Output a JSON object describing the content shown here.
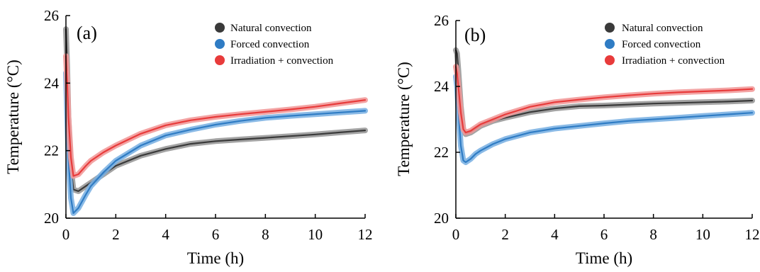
{
  "colors": {
    "natural": "#3a3a3a",
    "natural_band": "#9a9a9a",
    "forced": "#2f7cc4",
    "forced_band": "#7db3e3",
    "irradiation": "#e83b3b",
    "irradiation_band": "#f29a9a",
    "axis": "#000000"
  },
  "chart_data": [
    {
      "type": "line",
      "panel_label": "(a)",
      "xlabel": "Time (h)",
      "ylabel": "Temperature (°C)",
      "xlim": [
        0,
        12
      ],
      "ylim": [
        20,
        26
      ],
      "x_ticks": [
        "0",
        "2",
        "4",
        "6",
        "8",
        "10",
        "12"
      ],
      "y_ticks": [
        "20",
        "22",
        "24",
        "26"
      ],
      "legend_position": "top-right",
      "grid": false,
      "series": [
        {
          "name": "Natural convection",
          "color_key": "natural",
          "x": [
            0.0,
            0.05,
            0.1,
            0.2,
            0.3,
            0.5,
            0.8,
            1.0,
            1.5,
            2.0,
            3.0,
            4.0,
            5.0,
            6.0,
            7.0,
            8.0,
            9.0,
            10.0,
            11.0,
            12.0
          ],
          "y": [
            25.6,
            24.5,
            23.0,
            21.5,
            20.85,
            20.8,
            20.95,
            21.05,
            21.3,
            21.55,
            21.85,
            22.05,
            22.2,
            22.28,
            22.33,
            22.38,
            22.43,
            22.48,
            22.54,
            22.6
          ]
        },
        {
          "name": "Forced convection",
          "color_key": "forced",
          "x": [
            0.0,
            0.05,
            0.1,
            0.2,
            0.3,
            0.5,
            0.8,
            1.0,
            1.5,
            2.0,
            3.0,
            4.0,
            5.0,
            6.0,
            7.0,
            8.0,
            9.0,
            10.0,
            11.0,
            12.0
          ],
          "y": [
            24.3,
            23.0,
            21.8,
            20.6,
            20.15,
            20.3,
            20.7,
            20.95,
            21.35,
            21.7,
            22.15,
            22.45,
            22.62,
            22.77,
            22.88,
            22.97,
            23.03,
            23.08,
            23.13,
            23.18
          ]
        },
        {
          "name": "Irradiation + convection",
          "color_key": "irradiation",
          "x": [
            0.0,
            0.05,
            0.1,
            0.2,
            0.3,
            0.5,
            0.8,
            1.0,
            1.5,
            2.0,
            3.0,
            4.0,
            5.0,
            6.0,
            7.0,
            8.0,
            9.0,
            10.0,
            11.0,
            12.0
          ],
          "y": [
            24.8,
            24.0,
            23.0,
            21.8,
            21.25,
            21.3,
            21.55,
            21.7,
            21.95,
            22.15,
            22.5,
            22.75,
            22.9,
            23.0,
            23.08,
            23.15,
            23.22,
            23.3,
            23.4,
            23.5
          ]
        }
      ]
    },
    {
      "type": "line",
      "panel_label": "(b)",
      "xlabel": "Time (h)",
      "ylabel": "Temperature (°C)",
      "xlim": [
        0,
        12
      ],
      "ylim": [
        20,
        26
      ],
      "x_ticks": [
        "0",
        "2",
        "4",
        "6",
        "8",
        "10",
        "12"
      ],
      "y_ticks": [
        "20",
        "22",
        "24",
        "26"
      ],
      "legend_position": "top-right",
      "grid": false,
      "series": [
        {
          "name": "Natural convection",
          "color_key": "natural",
          "x": [
            0.0,
            0.05,
            0.1,
            0.2,
            0.3,
            0.4,
            0.6,
            0.8,
            1.0,
            1.5,
            2.0,
            3.0,
            4.0,
            5.0,
            6.0,
            7.0,
            8.0,
            9.0,
            10.0,
            11.0,
            12.0
          ],
          "y": [
            25.1,
            25.0,
            24.5,
            23.4,
            22.7,
            22.55,
            22.6,
            22.7,
            22.8,
            22.95,
            23.05,
            23.22,
            23.33,
            23.4,
            23.42,
            23.45,
            23.48,
            23.5,
            23.52,
            23.54,
            23.57
          ]
        },
        {
          "name": "Forced convection",
          "color_key": "forced",
          "x": [
            0.0,
            0.05,
            0.1,
            0.2,
            0.3,
            0.4,
            0.6,
            0.8,
            1.0,
            1.5,
            2.0,
            3.0,
            4.0,
            5.0,
            6.0,
            7.0,
            8.0,
            9.0,
            10.0,
            11.0,
            12.0
          ],
          "y": [
            24.3,
            24.0,
            23.3,
            22.2,
            21.75,
            21.7,
            21.8,
            21.95,
            22.05,
            22.25,
            22.4,
            22.6,
            22.72,
            22.8,
            22.88,
            22.95,
            23.0,
            23.05,
            23.1,
            23.15,
            23.2
          ]
        },
        {
          "name": "Irradiation + convection",
          "color_key": "irradiation",
          "x": [
            0.0,
            0.05,
            0.1,
            0.2,
            0.3,
            0.4,
            0.6,
            0.8,
            1.0,
            1.5,
            2.0,
            3.0,
            4.0,
            5.0,
            6.0,
            7.0,
            8.0,
            9.0,
            10.0,
            11.0,
            12.0
          ],
          "y": [
            24.6,
            24.4,
            24.0,
            23.2,
            22.7,
            22.6,
            22.65,
            22.75,
            22.85,
            23.0,
            23.15,
            23.38,
            23.52,
            23.6,
            23.67,
            23.73,
            23.78,
            23.82,
            23.85,
            23.88,
            23.92
          ]
        }
      ]
    }
  ]
}
